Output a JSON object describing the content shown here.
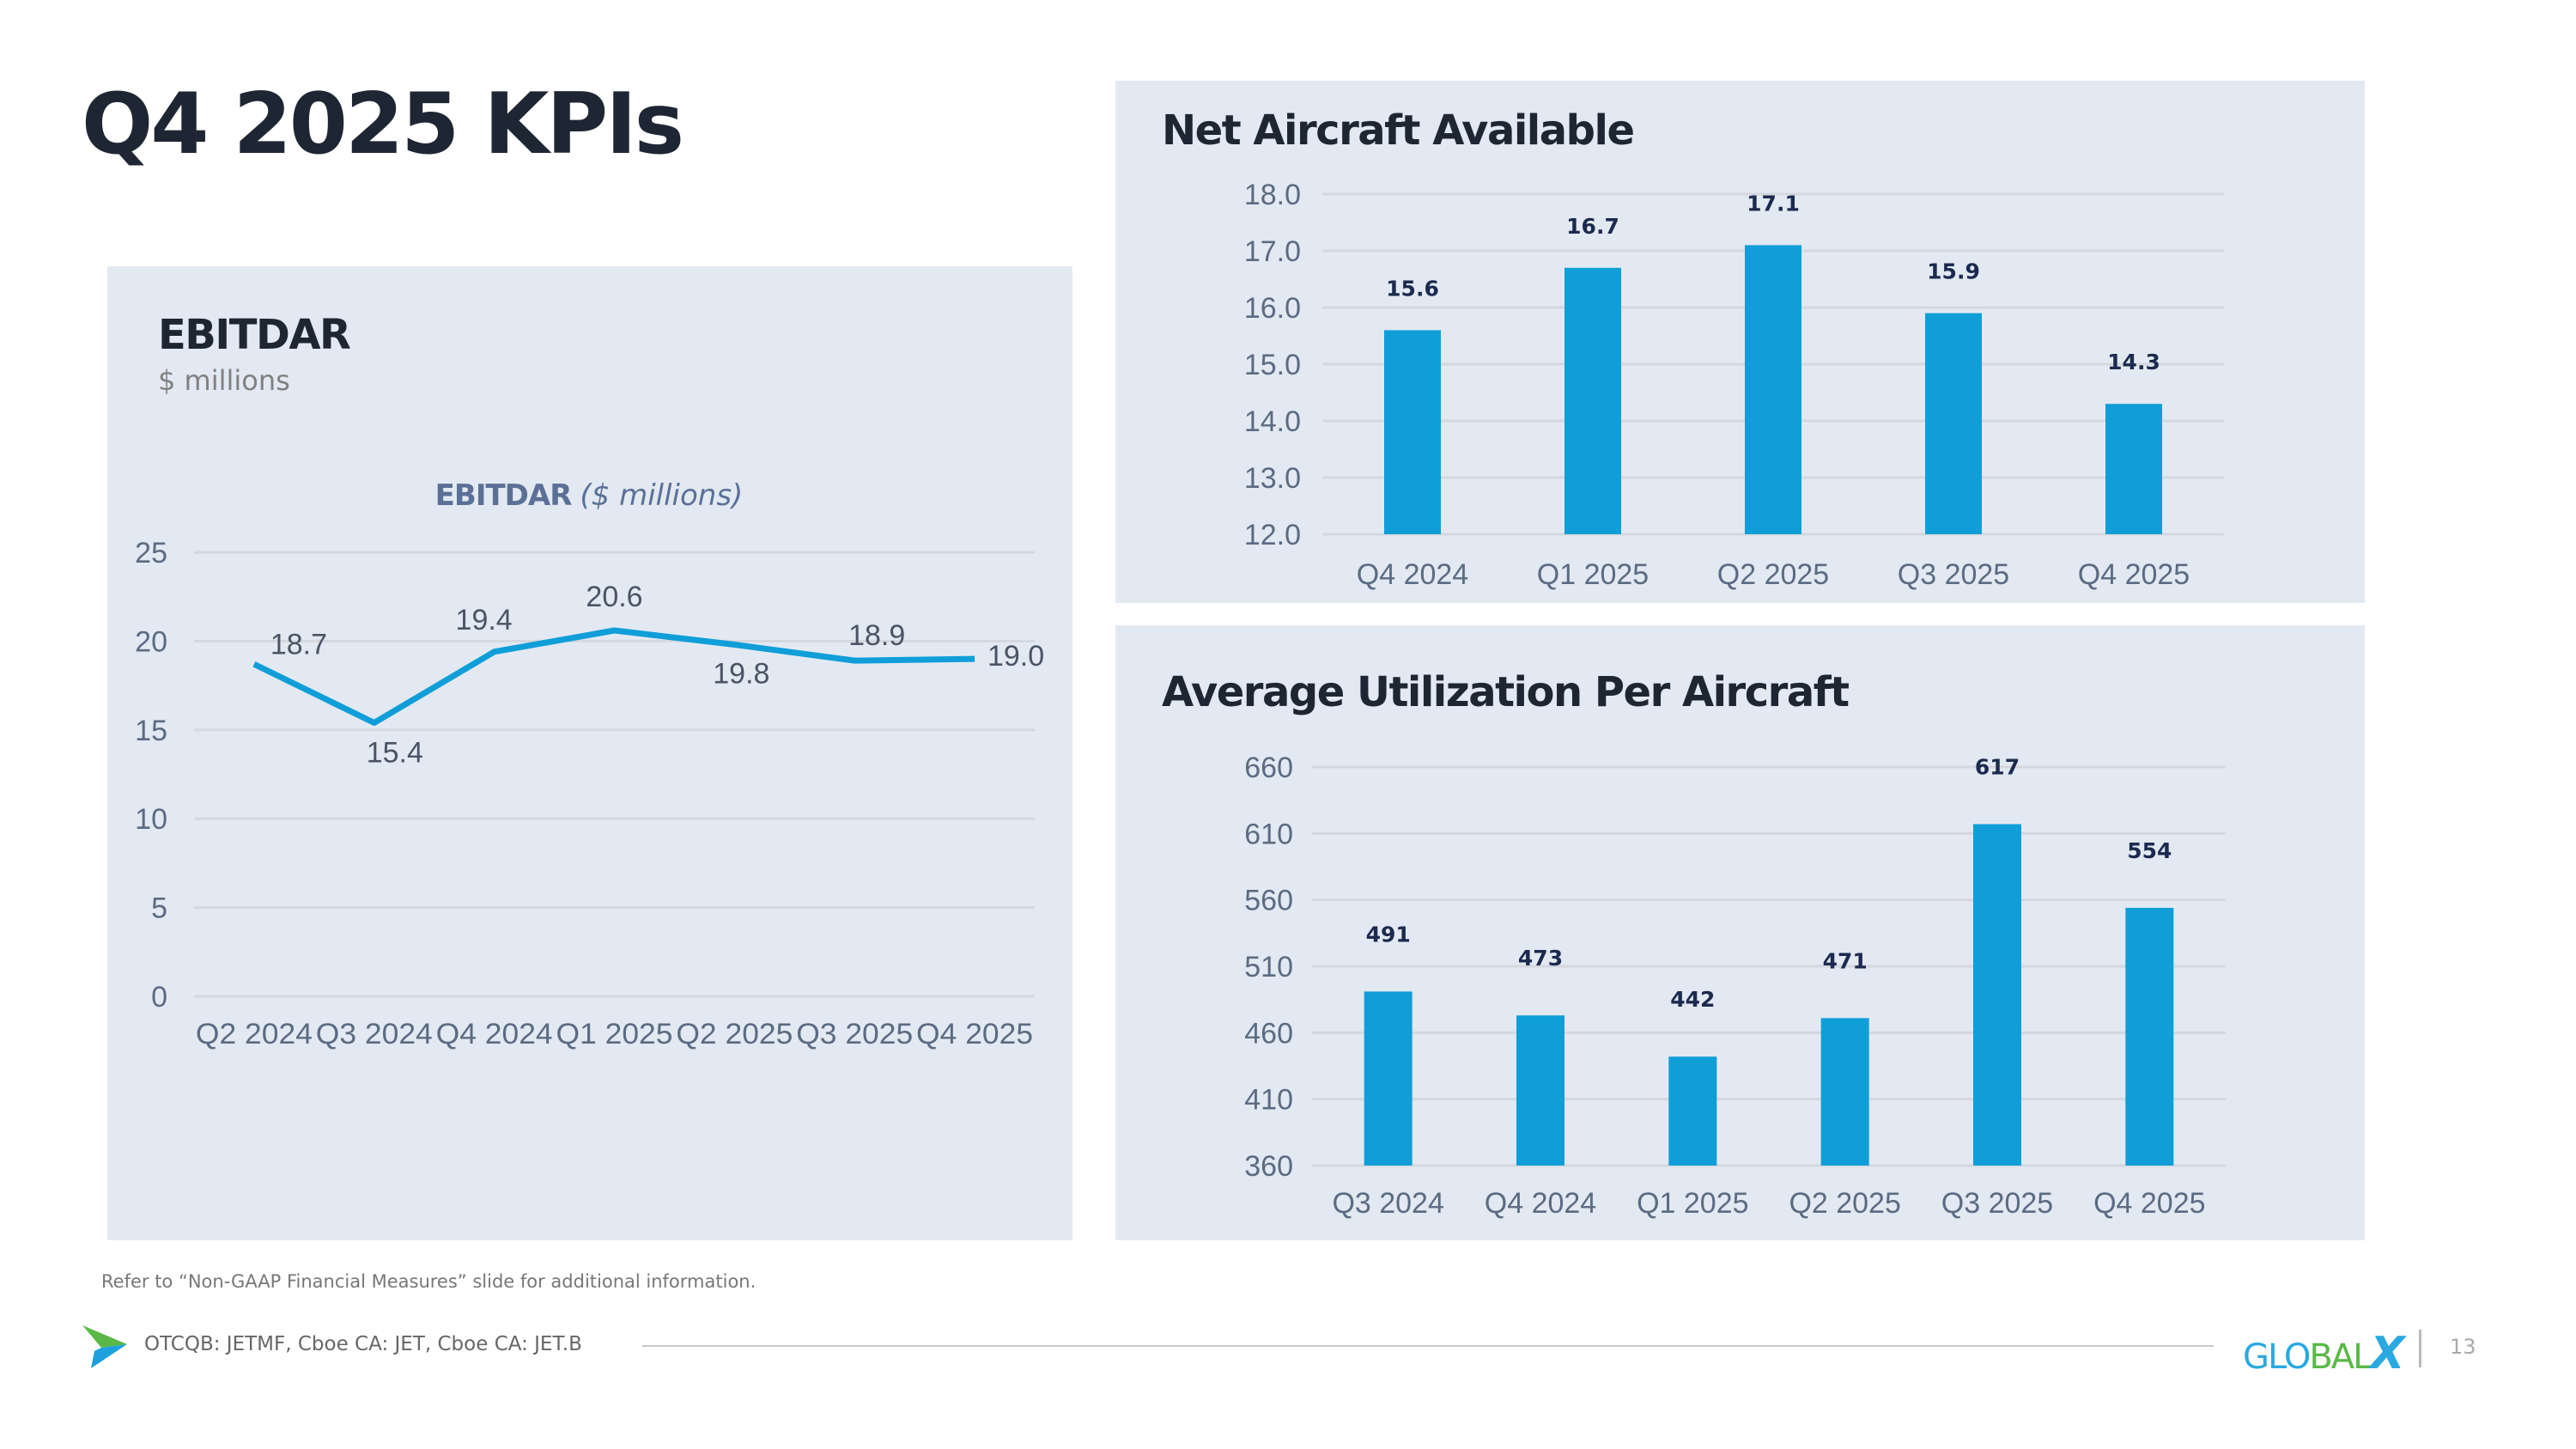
{
  "slide": {
    "title": "Q4 2025 KPIs",
    "footnote": "Refer to “Non-GAAP Financial Measures” slide for additional information.",
    "ticker": "OTCQB: JETMF, Cboe CA: JET, Cboe CA: JET.B",
    "brand": {
      "part1": "GLO",
      "part2": "BAL",
      "part3": "X"
    },
    "page_number": "13",
    "colors": {
      "bar": "#0f9ed8",
      "line": "#0f9ed8",
      "panel_bg": "#e3e9f2",
      "title": "#1f2633",
      "axis_text": "#5b6b82",
      "data_label_bar": "#1b2a4e",
      "data_label_line": "#4a5466",
      "grid": "#d4d8de"
    }
  },
  "panels": {
    "ebitdar": {
      "title": "EBITDAR",
      "subtitle": "$ millions"
    },
    "net_aircraft": {
      "title": "Net Aircraft Available"
    },
    "utilization": {
      "title": "Average Utilization Per Aircraft"
    }
  },
  "chart_data": [
    {
      "id": "ebitdar",
      "type": "line",
      "title": "EBITDAR",
      "title_suffix": "($ millions)",
      "xlabel": "",
      "ylabel": "",
      "categories": [
        "Q2 2024",
        "Q3 2024",
        "Q4 2024",
        "Q1 2025",
        "Q2 2025",
        "Q3 2025",
        "Q4 2025"
      ],
      "series": [
        {
          "name": "EBITDAR",
          "values": [
            18.7,
            15.4,
            19.4,
            20.6,
            19.8,
            18.9,
            19.0
          ]
        }
      ],
      "data_labels": [
        "18.7",
        "15.4",
        "19.4",
        "20.6",
        "19.8",
        "18.9",
        "19.0"
      ],
      "yticks": [
        "0",
        "5",
        "10",
        "15",
        "20",
        "25"
      ],
      "ylim": [
        0,
        25
      ],
      "grid": true,
      "legend": "none"
    },
    {
      "id": "net_aircraft",
      "type": "bar",
      "title": "Net Aircraft Available",
      "xlabel": "",
      "ylabel": "",
      "categories": [
        "Q4 2024",
        "Q1 2025",
        "Q2 2025",
        "Q3 2025",
        "Q4 2025"
      ],
      "values": [
        15.6,
        16.7,
        17.1,
        15.9,
        14.3
      ],
      "data_labels": [
        "15.6",
        "16.7",
        "17.1",
        "15.9",
        "14.3"
      ],
      "yticks": [
        "12.0",
        "13.0",
        "14.0",
        "15.0",
        "16.0",
        "17.0",
        "18.0"
      ],
      "ylim": [
        12,
        18
      ],
      "grid": true,
      "legend": "none"
    },
    {
      "id": "utilization",
      "type": "bar",
      "title": "Average Utilization Per Aircraft",
      "xlabel": "",
      "ylabel": "",
      "categories": [
        "Q3 2024",
        "Q4 2024",
        "Q1 2025",
        "Q2 2025",
        "Q3 2025",
        "Q4 2025"
      ],
      "values": [
        491,
        473,
        442,
        471,
        617,
        554
      ],
      "data_labels": [
        "491",
        "473",
        "442",
        "471",
        "617",
        "554"
      ],
      "yticks": [
        "360",
        "410",
        "460",
        "510",
        "560",
        "610",
        "660"
      ],
      "ylim": [
        360,
        660
      ],
      "grid": true,
      "legend": "none"
    }
  ]
}
